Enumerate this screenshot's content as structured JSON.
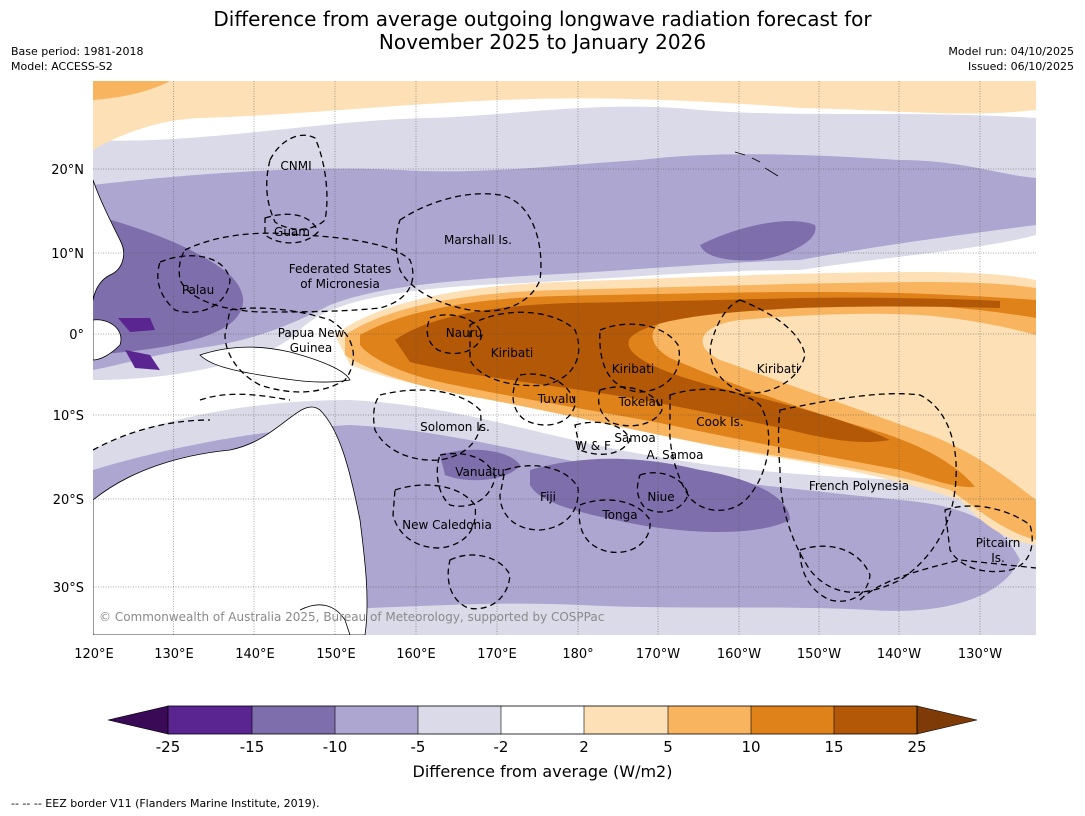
{
  "title_line1": "Difference from average outgoing longwave radiation forecast for",
  "title_line2": "November 2025 to January 2026",
  "base_period": "Base period: 1981-2018",
  "model": "Model: ACCESS-S2",
  "model_run": "Model run: 04/10/2025",
  "issued": "Issued: 06/10/2025",
  "copyright": "© Commonwealth of Australia 2025, Bureau of Meteorology, supported by COSPPac",
  "footnote": "--  --  -- EEZ border V11 (Flanders Marine Institute, 2019).",
  "lon_ticks": [
    "120°E",
    "130°E",
    "140°E",
    "150°E",
    "160°E",
    "170°E",
    "180°",
    "170°W",
    "160°W",
    "150°W",
    "140°W",
    "130°W"
  ],
  "lat_ticks": [
    "20°N",
    "10°N",
    "0°",
    "10°S",
    "20°S",
    "30°S"
  ],
  "labels": {
    "cnmi": "CNMI",
    "guam": "Guam",
    "marshall": "Marshall Is.",
    "fsm1": "Federated States",
    "fsm2": "of Micronesia",
    "palau": "Palau",
    "png1": "Papua New",
    "png2": "Guinea",
    "nauru": "Nauru",
    "kiribati1": "Kiribati",
    "kiribati2": "Kiribati",
    "kiribati3": "Kiribati",
    "tuvalu": "Tuvalu",
    "tokelau": "Tokelau",
    "cook": "Cook Is.",
    "solomon": "Solomon Is.",
    "wf": "W & F",
    "samoa": "Samoa",
    "asamoa": "A. Samoa",
    "vanuatu": "Vanuatu",
    "fiji": "Fiji",
    "niue": "Niue",
    "tonga": "Tonga",
    "frpoly": "French Polynesia",
    "newcal": "New Caledonia",
    "pitcairn1": "Pitcairn",
    "pitcairn2": "Is."
  },
  "colorbar": {
    "title": "Difference from average (W/m2)",
    "tick_labels": [
      "-25",
      "-15",
      "-10",
      "-5",
      "-2",
      "2",
      "5",
      "10",
      "15",
      "25"
    ],
    "colors": [
      "#3b0a57",
      "#5a2590",
      "#7e6eab",
      "#aca6d0",
      "#dadae9",
      "#ffffff",
      "#fde0b5",
      "#f8b45e",
      "#e0821a",
      "#b35806",
      "#7e3b08"
    ]
  },
  "colors": {
    "ocean": "#ffffff",
    "grid": "#555555"
  }
}
